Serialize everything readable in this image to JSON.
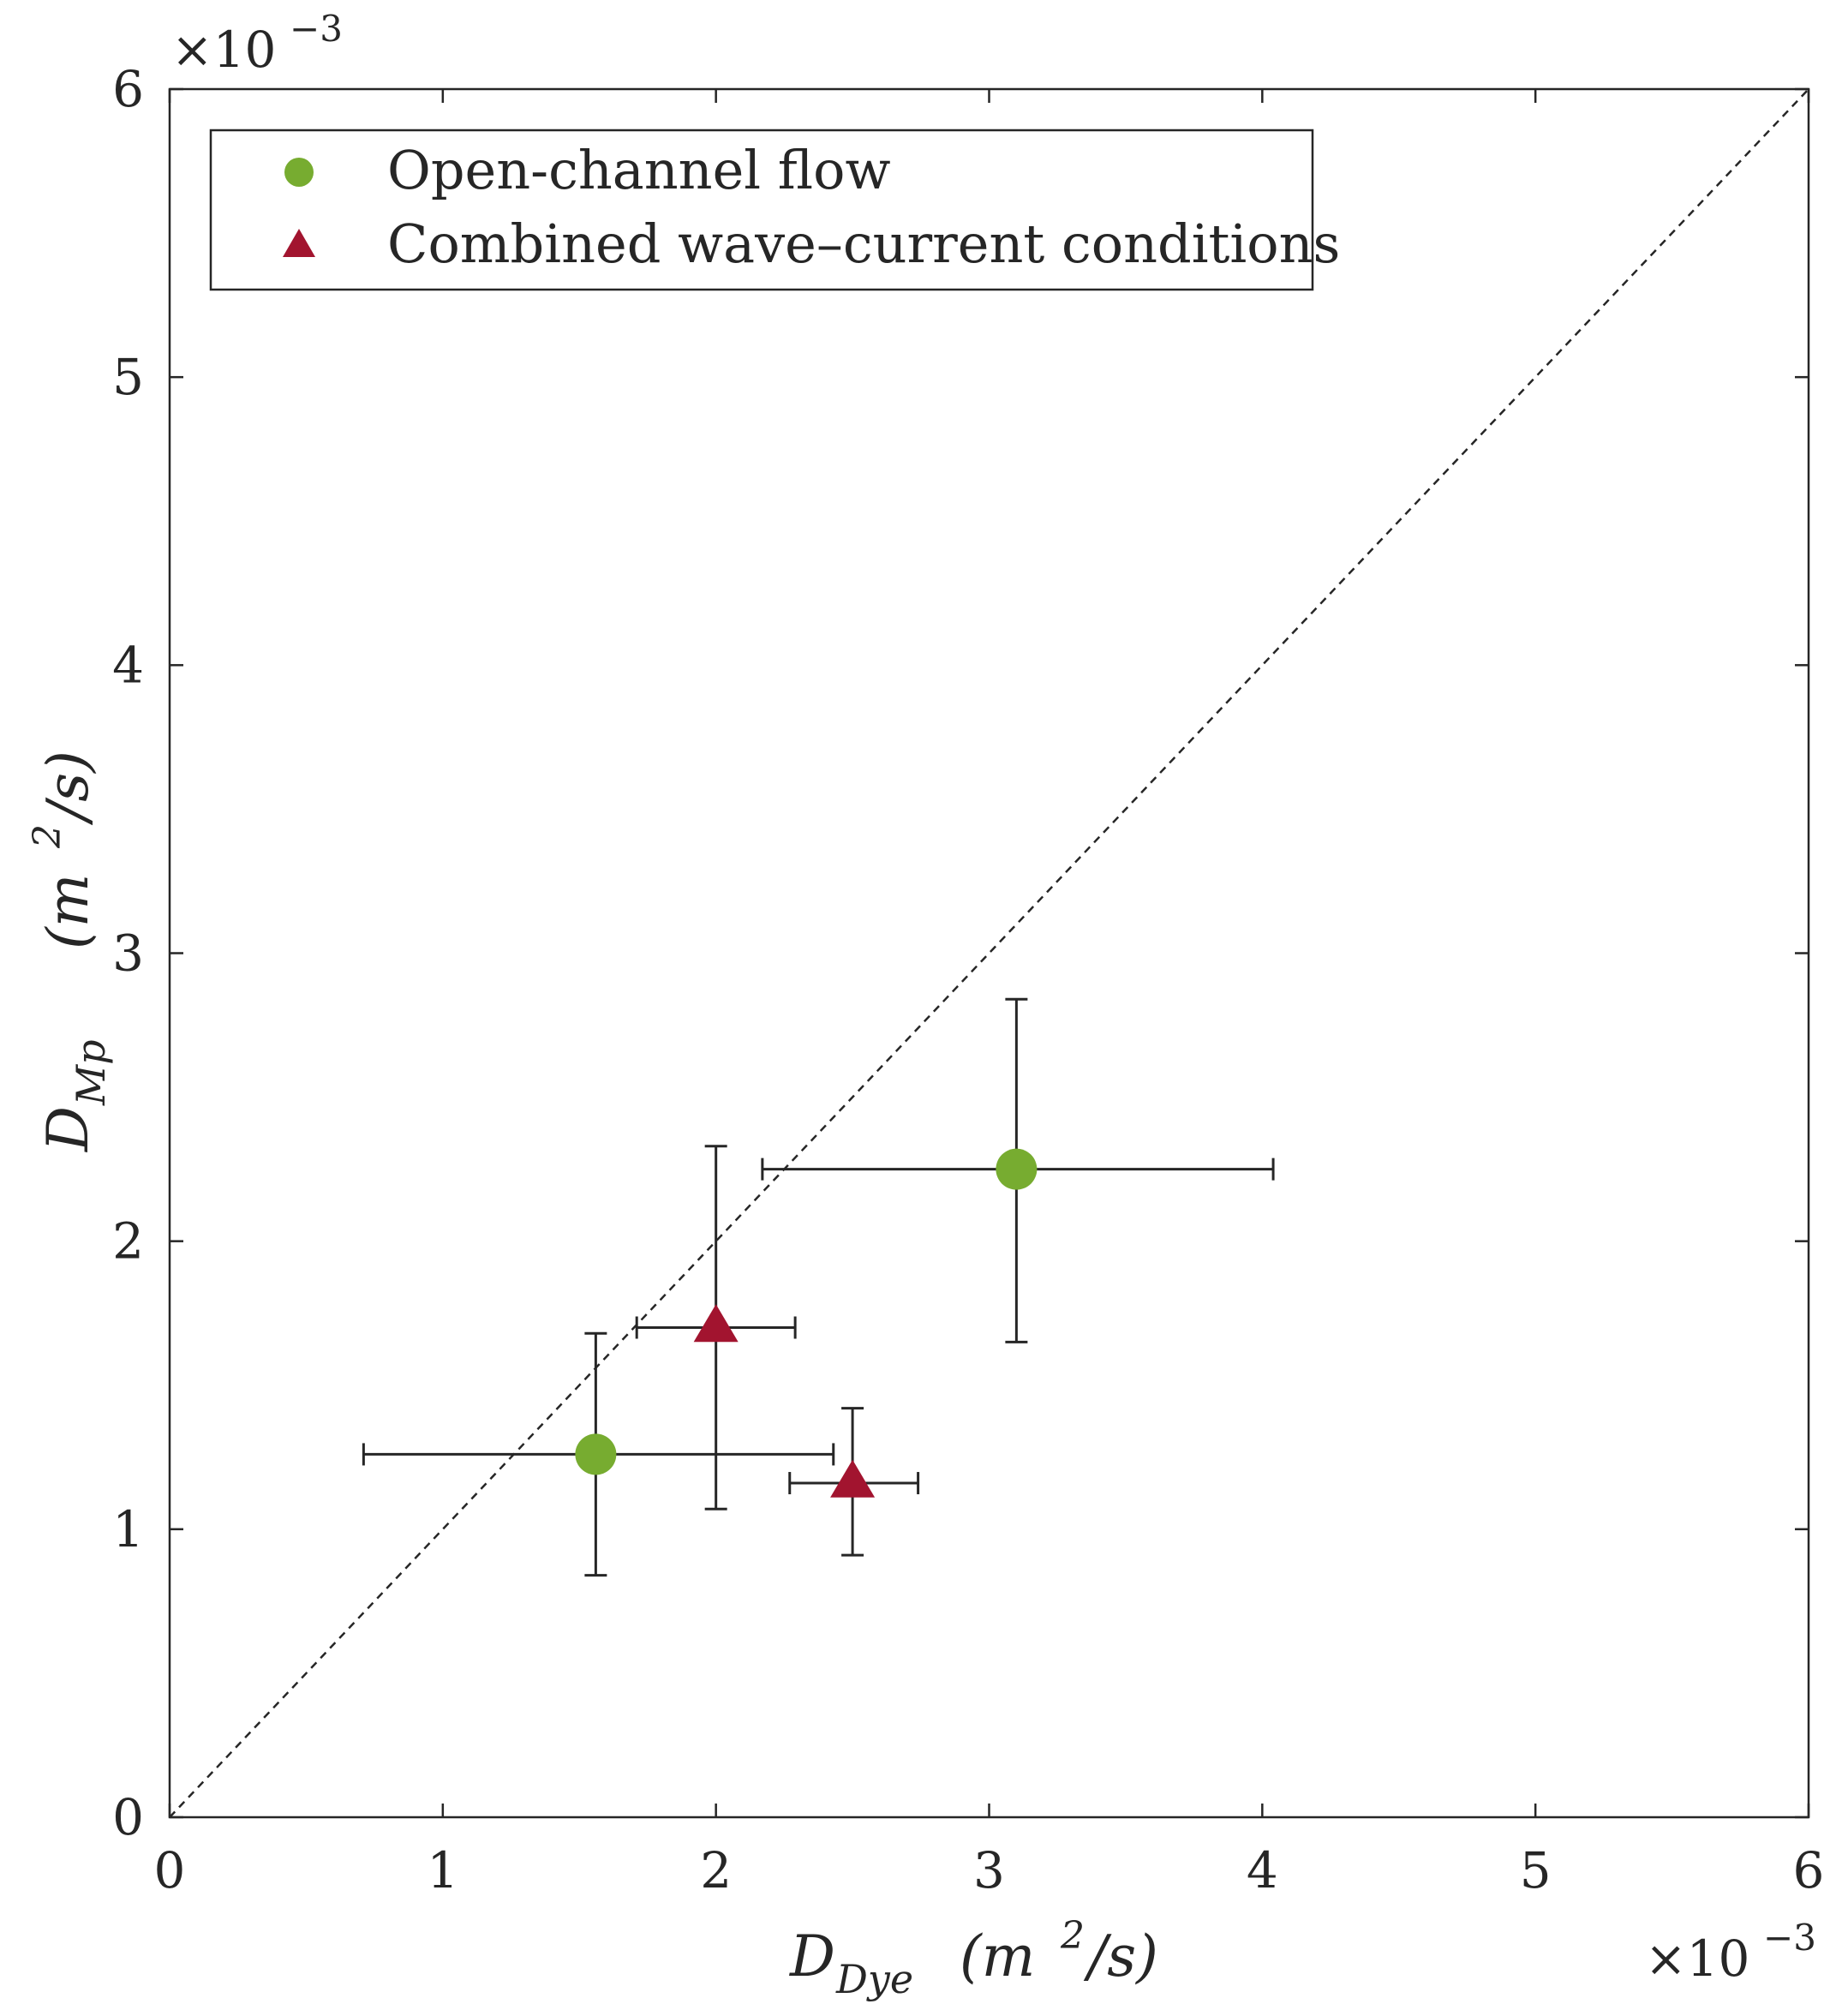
{
  "chart_data": {
    "type": "scatter",
    "title": "",
    "xlabel": {
      "symbol": "D",
      "subscript": "Dye",
      "unit_prefix": "(m",
      "unit_power": "2",
      "unit_suffix": "/s)"
    },
    "ylabel": {
      "symbol": "D",
      "subscript": "Mp",
      "unit_prefix": "(m",
      "unit_power": "2",
      "unit_suffix": "/s)"
    },
    "xlim": [
      0,
      6
    ],
    "ylim": [
      0,
      6
    ],
    "xticks": [
      0,
      1,
      2,
      3,
      4,
      5,
      6
    ],
    "yticks": [
      0,
      1,
      2,
      3,
      4,
      5,
      6
    ],
    "xtick_labels": [
      "0",
      "1",
      "2",
      "3",
      "4",
      "5",
      "6"
    ],
    "ytick_labels": [
      "0",
      "1",
      "2",
      "3",
      "4",
      "5",
      "6"
    ],
    "x_exponent": {
      "base": "×10",
      "power": "−3"
    },
    "y_exponent": {
      "base": "×10",
      "power": "−3"
    },
    "grid": false,
    "reference_line": {
      "type": "y=x",
      "style": "dashed"
    },
    "legend": {
      "position": "top-left"
    },
    "series": [
      {
        "name": "Open-channel flow",
        "marker": "circle",
        "color": "#77AC30",
        "points": [
          {
            "x": 1.56,
            "y": 1.26,
            "xerr": [
              0.71,
              2.43
            ],
            "yerr": [
              0.84,
              1.68
            ]
          },
          {
            "x": 3.1,
            "y": 2.25,
            "xerr": [
              2.17,
              4.04
            ],
            "yerr": [
              1.65,
              2.84
            ]
          }
        ]
      },
      {
        "name": "Combined wave–current conditions",
        "marker": "triangle",
        "color": "#A2142F",
        "points": [
          {
            "x": 2.0,
            "y": 1.7,
            "xerr": [
              1.71,
              2.29
            ],
            "yerr": [
              1.07,
              2.33
            ]
          },
          {
            "x": 2.5,
            "y": 1.16,
            "xerr": [
              2.27,
              2.74
            ],
            "yerr": [
              0.91,
              1.42
            ]
          }
        ]
      }
    ]
  }
}
